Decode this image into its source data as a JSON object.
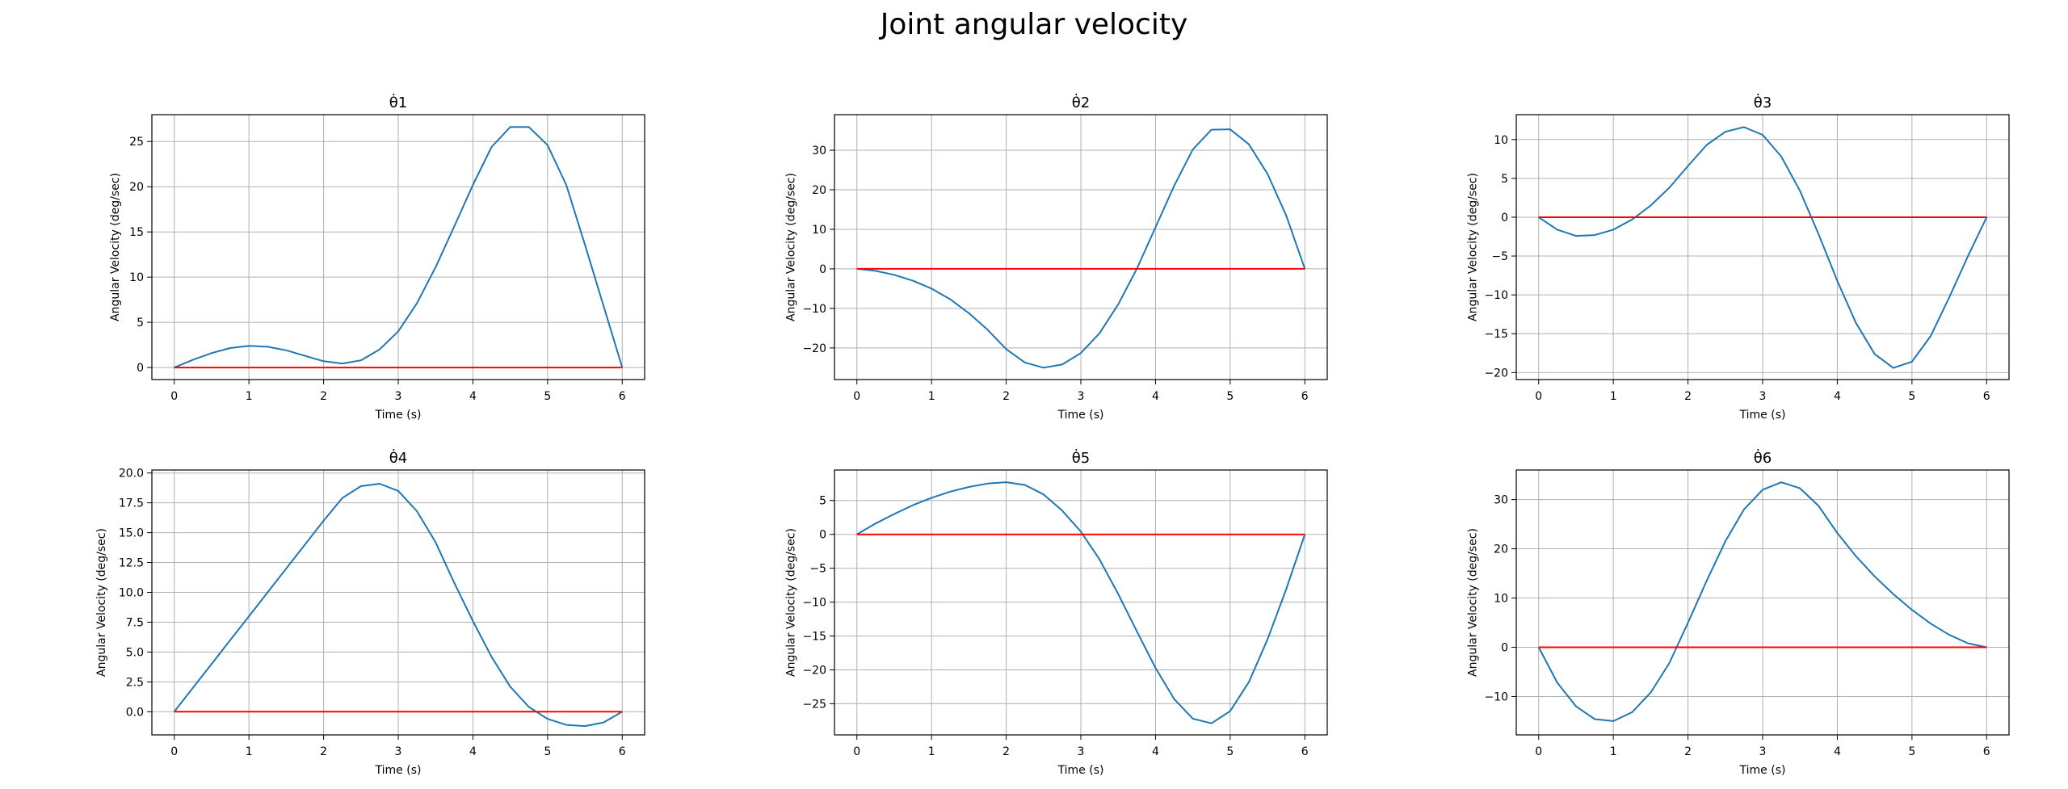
{
  "figure": {
    "title": "Joint angular velocity"
  },
  "colors": {
    "curve": "#1f77b4",
    "zero_line": "#ff0000",
    "grid": "#b0b0b0"
  },
  "chart_data": [
    {
      "type": "line",
      "title": "θ̇1",
      "xlabel": "Time (s)",
      "ylabel": "Angular Velocity (deg/sec)",
      "xlim": [
        -0.3,
        6.3
      ],
      "ylim": [
        -1.33,
        27.97
      ],
      "xticks": [
        0,
        1,
        2,
        3,
        4,
        5,
        6
      ],
      "yticks": [
        0,
        5,
        10,
        15,
        20,
        25
      ],
      "ytick_labels": [
        "0",
        "5",
        "10",
        "15",
        "20",
        "25"
      ],
      "grid": true,
      "series": [
        {
          "role": "velocity",
          "x": [
            0,
            0.25,
            0.5,
            0.75,
            1.0,
            1.25,
            1.5,
            1.75,
            2.0,
            2.25,
            2.5,
            2.75,
            3.0,
            3.25,
            3.5,
            3.75,
            4.0,
            4.25,
            4.5,
            4.75,
            5.0,
            5.25,
            5.5,
            5.75,
            6.0
          ],
          "y": [
            0,
            0.85,
            1.6,
            2.15,
            2.4,
            2.3,
            1.9,
            1.3,
            0.7,
            0.45,
            0.8,
            2.0,
            4.0,
            7.1,
            11.1,
            15.6,
            20.2,
            24.4,
            26.6,
            26.6,
            24.6,
            20.2,
            13.6,
            6.8,
            0
          ]
        },
        {
          "role": "zero",
          "x": [
            0,
            6
          ],
          "y": [
            0,
            0
          ]
        }
      ]
    },
    {
      "type": "line",
      "title": "θ̇2",
      "xlabel": "Time (s)",
      "ylabel": "Angular Velocity (deg/sec)",
      "xlim": [
        -0.3,
        6.3
      ],
      "ylim": [
        -28.0,
        39.0
      ],
      "xticks": [
        0,
        1,
        2,
        3,
        4,
        5,
        6
      ],
      "yticks": [
        -20,
        -10,
        0,
        10,
        20,
        30
      ],
      "ytick_labels": [
        "−20",
        "−10",
        "0",
        "10",
        "20",
        "30"
      ],
      "grid": true,
      "series": [
        {
          "role": "velocity",
          "x": [
            0,
            0.25,
            0.5,
            0.75,
            1.0,
            1.25,
            1.5,
            1.75,
            2.0,
            2.25,
            2.5,
            2.75,
            3.0,
            3.25,
            3.5,
            3.75,
            4.0,
            4.25,
            4.5,
            4.75,
            5.0,
            5.25,
            5.5,
            5.75,
            6.0
          ],
          "y": [
            0,
            -0.5,
            -1.5,
            -3.0,
            -5.0,
            -7.7,
            -11.2,
            -15.4,
            -20.3,
            -23.7,
            -25.0,
            -24.2,
            -21.3,
            -16.3,
            -9.0,
            0.0,
            10.5,
            21.0,
            30.2,
            35.2,
            35.3,
            31.5,
            24.0,
            13.5,
            0
          ]
        },
        {
          "role": "zero",
          "x": [
            0,
            6
          ],
          "y": [
            0,
            0
          ]
        }
      ]
    },
    {
      "type": "line",
      "title": "θ̇3",
      "xlabel": "Time (s)",
      "ylabel": "Angular Velocity (deg/sec)",
      "xlim": [
        -0.3,
        6.3
      ],
      "ylim": [
        -20.9,
        13.2
      ],
      "xticks": [
        0,
        1,
        2,
        3,
        4,
        5,
        6
      ],
      "yticks": [
        -20,
        -15,
        -10,
        -5,
        0,
        5,
        10
      ],
      "ytick_labels": [
        "−20",
        "−15",
        "−10",
        "−5",
        "0",
        "5",
        "10"
      ],
      "grid": true,
      "series": [
        {
          "role": "velocity",
          "x": [
            0,
            0.25,
            0.5,
            0.75,
            1.0,
            1.25,
            1.5,
            1.75,
            2.0,
            2.25,
            2.5,
            2.75,
            3.0,
            3.25,
            3.5,
            3.75,
            4.0,
            4.25,
            4.5,
            4.75,
            5.0,
            5.25,
            5.5,
            5.75,
            6.0
          ],
          "y": [
            0,
            -1.6,
            -2.4,
            -2.3,
            -1.6,
            -0.3,
            1.5,
            3.8,
            6.6,
            9.3,
            11.0,
            11.6,
            10.6,
            7.8,
            3.4,
            -2.2,
            -8.2,
            -13.6,
            -17.6,
            -19.4,
            -18.6,
            -15.3,
            -10.3,
            -5.0,
            0
          ]
        },
        {
          "role": "zero",
          "x": [
            0,
            6
          ],
          "y": [
            0,
            0
          ]
        }
      ]
    },
    {
      "type": "line",
      "title": "θ̇4",
      "xlabel": "Time (s)",
      "ylabel": "Angular Velocity (deg/sec)",
      "xlim": [
        -0.3,
        6.3
      ],
      "ylim": [
        -1.94,
        20.25
      ],
      "xticks": [
        0,
        1,
        2,
        3,
        4,
        5,
        6
      ],
      "yticks": [
        0,
        2.5,
        5,
        7.5,
        10,
        12.5,
        15,
        17.5,
        20
      ],
      "ytick_labels": [
        "0.0",
        "2.5",
        "5.0",
        "7.5",
        "10.0",
        "12.5",
        "15.0",
        "17.5",
        "20.0"
      ],
      "grid": true,
      "series": [
        {
          "role": "velocity",
          "x": [
            0,
            0.25,
            0.5,
            0.75,
            1.0,
            1.25,
            1.5,
            1.75,
            2.0,
            2.25,
            2.5,
            2.75,
            3.0,
            3.25,
            3.5,
            3.75,
            4.0,
            4.25,
            4.5,
            4.75,
            5.0,
            5.25,
            5.5,
            5.75,
            6.0
          ],
          "y": [
            0,
            2.0,
            4.0,
            6.0,
            8.0,
            10.0,
            12.0,
            14.0,
            16.0,
            17.9,
            18.9,
            19.1,
            18.5,
            16.8,
            14.2,
            10.8,
            7.6,
            4.6,
            2.1,
            0.4,
            -0.6,
            -1.1,
            -1.2,
            -0.9,
            0
          ]
        },
        {
          "role": "zero",
          "x": [
            0,
            6
          ],
          "y": [
            0,
            0
          ]
        }
      ]
    },
    {
      "type": "line",
      "title": "θ̇5",
      "xlabel": "Time (s)",
      "ylabel": "Angular Velocity (deg/sec)",
      "xlim": [
        -0.3,
        6.3
      ],
      "ylim": [
        -29.6,
        9.5
      ],
      "xticks": [
        0,
        1,
        2,
        3,
        4,
        5,
        6
      ],
      "yticks": [
        -25,
        -20,
        -15,
        -10,
        -5,
        0,
        5
      ],
      "ytick_labels": [
        "−25",
        "−20",
        "−15",
        "−10",
        "−5",
        "0",
        "5"
      ],
      "grid": true,
      "series": [
        {
          "role": "velocity",
          "x": [
            0,
            0.25,
            0.5,
            0.75,
            1.0,
            1.25,
            1.5,
            1.75,
            2.0,
            2.25,
            2.5,
            2.75,
            3.0,
            3.25,
            3.5,
            3.75,
            4.0,
            4.25,
            4.5,
            4.75,
            5.0,
            5.25,
            5.5,
            5.75,
            6.0
          ],
          "y": [
            0,
            1.6,
            3.0,
            4.3,
            5.4,
            6.3,
            7.0,
            7.5,
            7.7,
            7.3,
            5.9,
            3.5,
            0.4,
            -3.7,
            -8.8,
            -14.3,
            -19.7,
            -24.3,
            -27.2,
            -27.9,
            -26.1,
            -21.8,
            -15.5,
            -8.1,
            0
          ]
        },
        {
          "role": "zero",
          "x": [
            0,
            6
          ],
          "y": [
            0,
            0
          ]
        }
      ]
    },
    {
      "type": "line",
      "title": "θ̇6",
      "xlabel": "Time (s)",
      "ylabel": "Angular Velocity (deg/sec)",
      "xlim": [
        -0.3,
        6.3
      ],
      "ylim": [
        -17.8,
        36.0
      ],
      "xticks": [
        0,
        1,
        2,
        3,
        4,
        5,
        6
      ],
      "yticks": [
        -10,
        0,
        10,
        20,
        30
      ],
      "ytick_labels": [
        "−10",
        "0",
        "10",
        "20",
        "30"
      ],
      "grid": true,
      "series": [
        {
          "role": "velocity",
          "x": [
            0,
            0.25,
            0.5,
            0.75,
            1.0,
            1.25,
            1.5,
            1.75,
            2.0,
            2.25,
            2.5,
            2.75,
            3.0,
            3.25,
            3.5,
            3.75,
            4.0,
            4.25,
            4.5,
            4.75,
            5.0,
            5.25,
            5.5,
            5.75,
            6.0
          ],
          "y": [
            0,
            -7.2,
            -12.0,
            -14.6,
            -15.0,
            -13.2,
            -9.2,
            -3.2,
            5.0,
            13.5,
            21.5,
            28.0,
            32.0,
            33.5,
            32.3,
            28.7,
            23.2,
            18.5,
            14.4,
            10.8,
            7.6,
            4.8,
            2.5,
            0.8,
            0
          ]
        },
        {
          "role": "zero",
          "x": [
            0,
            6
          ],
          "y": [
            0,
            0
          ]
        }
      ]
    }
  ]
}
